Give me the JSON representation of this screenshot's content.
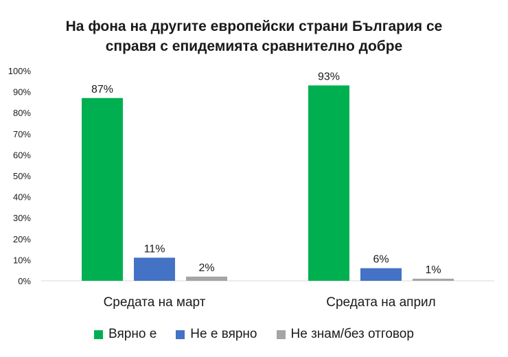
{
  "chart_data": {
    "type": "bar",
    "title_lines": [
      "На фона на другите европейски страни България се",
      "справя с епидемията сравнително добре"
    ],
    "categories": [
      "Средата на март",
      "Средата на април"
    ],
    "series": [
      {
        "name": "Вярно е",
        "color": "#00b050",
        "values": [
          87,
          93
        ],
        "labels": [
          "87%",
          "93%"
        ]
      },
      {
        "name": "Не е вярно",
        "color": "#4472c4",
        "values": [
          11,
          6
        ],
        "labels": [
          "11%",
          "6%"
        ]
      },
      {
        "name": "Не знам/без отговор",
        "color": "#a5a5a5",
        "values": [
          2,
          1
        ],
        "labels": [
          "2%",
          "1%"
        ]
      }
    ],
    "ylim": [
      0,
      100
    ],
    "yticks": [
      "0%",
      "10%",
      "20%",
      "30%",
      "40%",
      "50%",
      "60%",
      "70%",
      "80%",
      "90%",
      "100%"
    ],
    "grid": false,
    "legend_position": "bottom"
  }
}
